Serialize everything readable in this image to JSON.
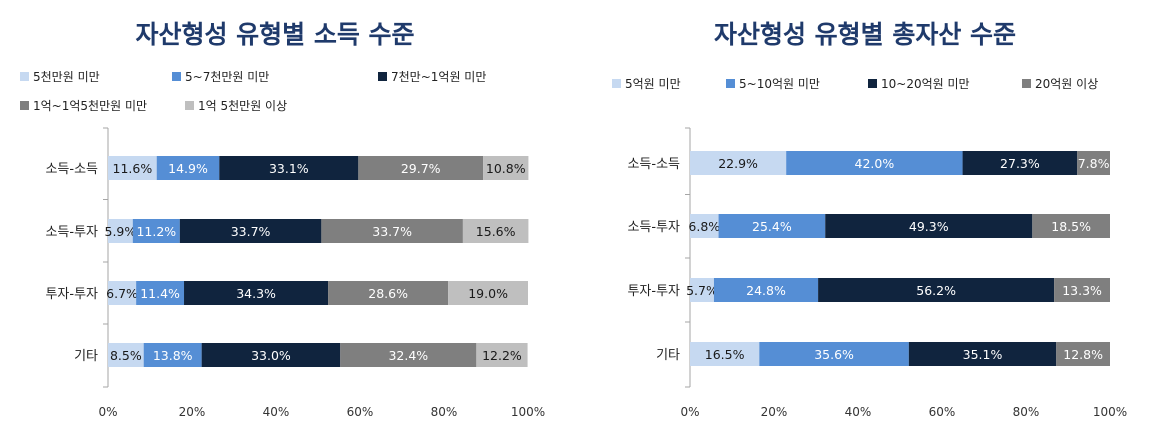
{
  "chart_data": [
    {
      "type": "bar",
      "orientation": "horizontal",
      "stacked": "percent",
      "title": "자산형성 유형별 소득 수준",
      "categories": [
        "소득-소득",
        "소득-투자",
        "투자-투자",
        "기타"
      ],
      "series": [
        {
          "name": "5천만원 미만",
          "color": "#c6d9f1",
          "values": [
            11.6,
            5.9,
            6.7,
            8.5
          ]
        },
        {
          "name": "5~7천만원 미만",
          "color": "#558ed5",
          "values": [
            14.9,
            11.2,
            11.4,
            13.8
          ]
        },
        {
          "name": "7천만~1억원 미만",
          "color": "#10243e",
          "values": [
            33.1,
            33.7,
            34.3,
            33.0
          ]
        },
        {
          "name": "1억~1억5천만원 미만",
          "color": "#7f7f7f",
          "values": [
            29.7,
            33.7,
            28.6,
            32.4
          ]
        },
        {
          "name": "1억 5천만원 이상",
          "color": "#bfbfbf",
          "values": [
            10.8,
            15.6,
            19.0,
            12.2
          ]
        }
      ],
      "labels": [
        [
          "11.6%",
          "5.9%",
          "6.7%",
          "8.5%"
        ],
        [
          "14.9%",
          "11.2%",
          "11.4%",
          "13.8%"
        ],
        [
          "33.1%",
          "33.7%",
          "34.3%",
          "33.0%"
        ],
        [
          "29.7%",
          "33.7%",
          "28.6%",
          "32.4%"
        ],
        [
          "10.8%",
          "15.6%",
          "19.0%",
          "12.2%"
        ]
      ],
      "xlim": [
        0,
        100
      ],
      "xticks": [
        "0%",
        "20%",
        "40%",
        "60%",
        "80%",
        "100%"
      ],
      "legend": "top",
      "grid": false
    },
    {
      "type": "bar",
      "orientation": "horizontal",
      "stacked": "percent",
      "title": "자산형성 유형별 총자산 수준",
      "categories": [
        "소득-소득",
        "소득-투자",
        "투자-투자",
        "기타"
      ],
      "series": [
        {
          "name": "5억원 미만",
          "color": "#c6d9f1",
          "values": [
            22.9,
            6.8,
            5.7,
            16.5
          ]
        },
        {
          "name": "5~10억원 미만",
          "color": "#558ed5",
          "values": [
            42.0,
            25.4,
            24.8,
            35.6
          ]
        },
        {
          "name": "10~20억원 미만",
          "color": "#10243e",
          "values": [
            27.3,
            49.3,
            56.2,
            35.1
          ]
        },
        {
          "name": "20억원 이상",
          "color": "#7f7f7f",
          "values": [
            7.8,
            18.5,
            13.3,
            12.8
          ]
        }
      ],
      "labels": [
        [
          "22.9%",
          "6.8%",
          "5.7%",
          "16.5%"
        ],
        [
          "42.0%",
          "25.4%",
          "24.8%",
          "35.6%"
        ],
        [
          "27.3%",
          "49.3%",
          "56.2%",
          "35.1%"
        ],
        [
          "7.8%",
          "18.5%",
          "13.3%",
          "12.8%"
        ]
      ],
      "xlim": [
        0,
        100
      ],
      "xticks": [
        "0%",
        "20%",
        "40%",
        "60%",
        "80%",
        "100%"
      ],
      "legend": "top",
      "grid": false
    }
  ]
}
